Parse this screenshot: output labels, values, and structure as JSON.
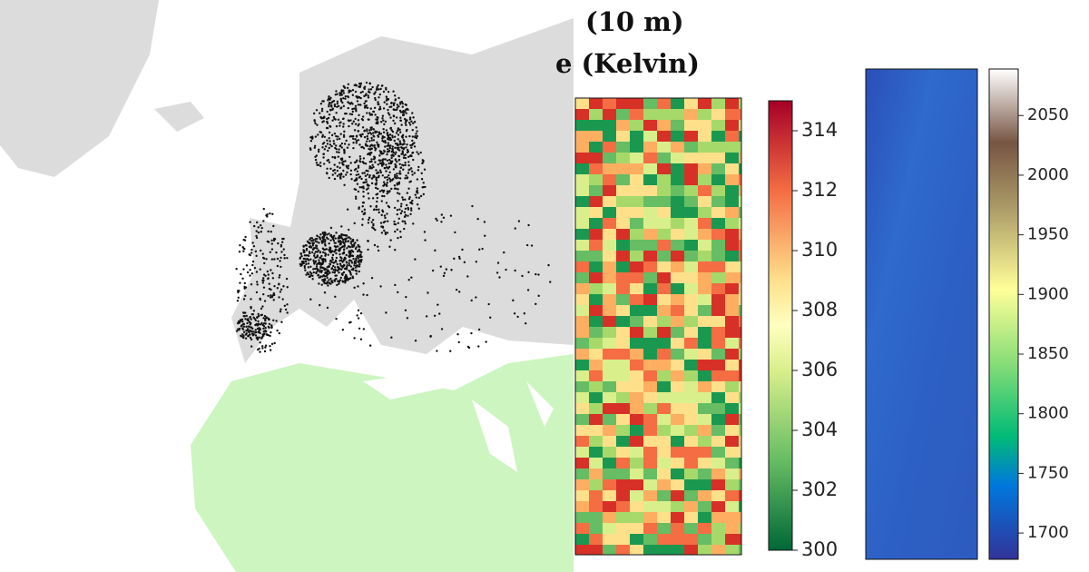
{
  "title_lines": [
    "(10 m)",
    "e (Kelvin)"
  ],
  "colorbar_temperature": {
    "lim": [
      300,
      315
    ],
    "ticks": [
      300,
      302,
      304,
      306,
      308,
      310,
      312,
      314
    ]
  },
  "colorbar_elevation": {
    "lim": [
      1678,
      2089
    ],
    "ticks": [
      1700,
      1750,
      1800,
      1850,
      1900,
      1950,
      2000,
      2050
    ]
  }
}
